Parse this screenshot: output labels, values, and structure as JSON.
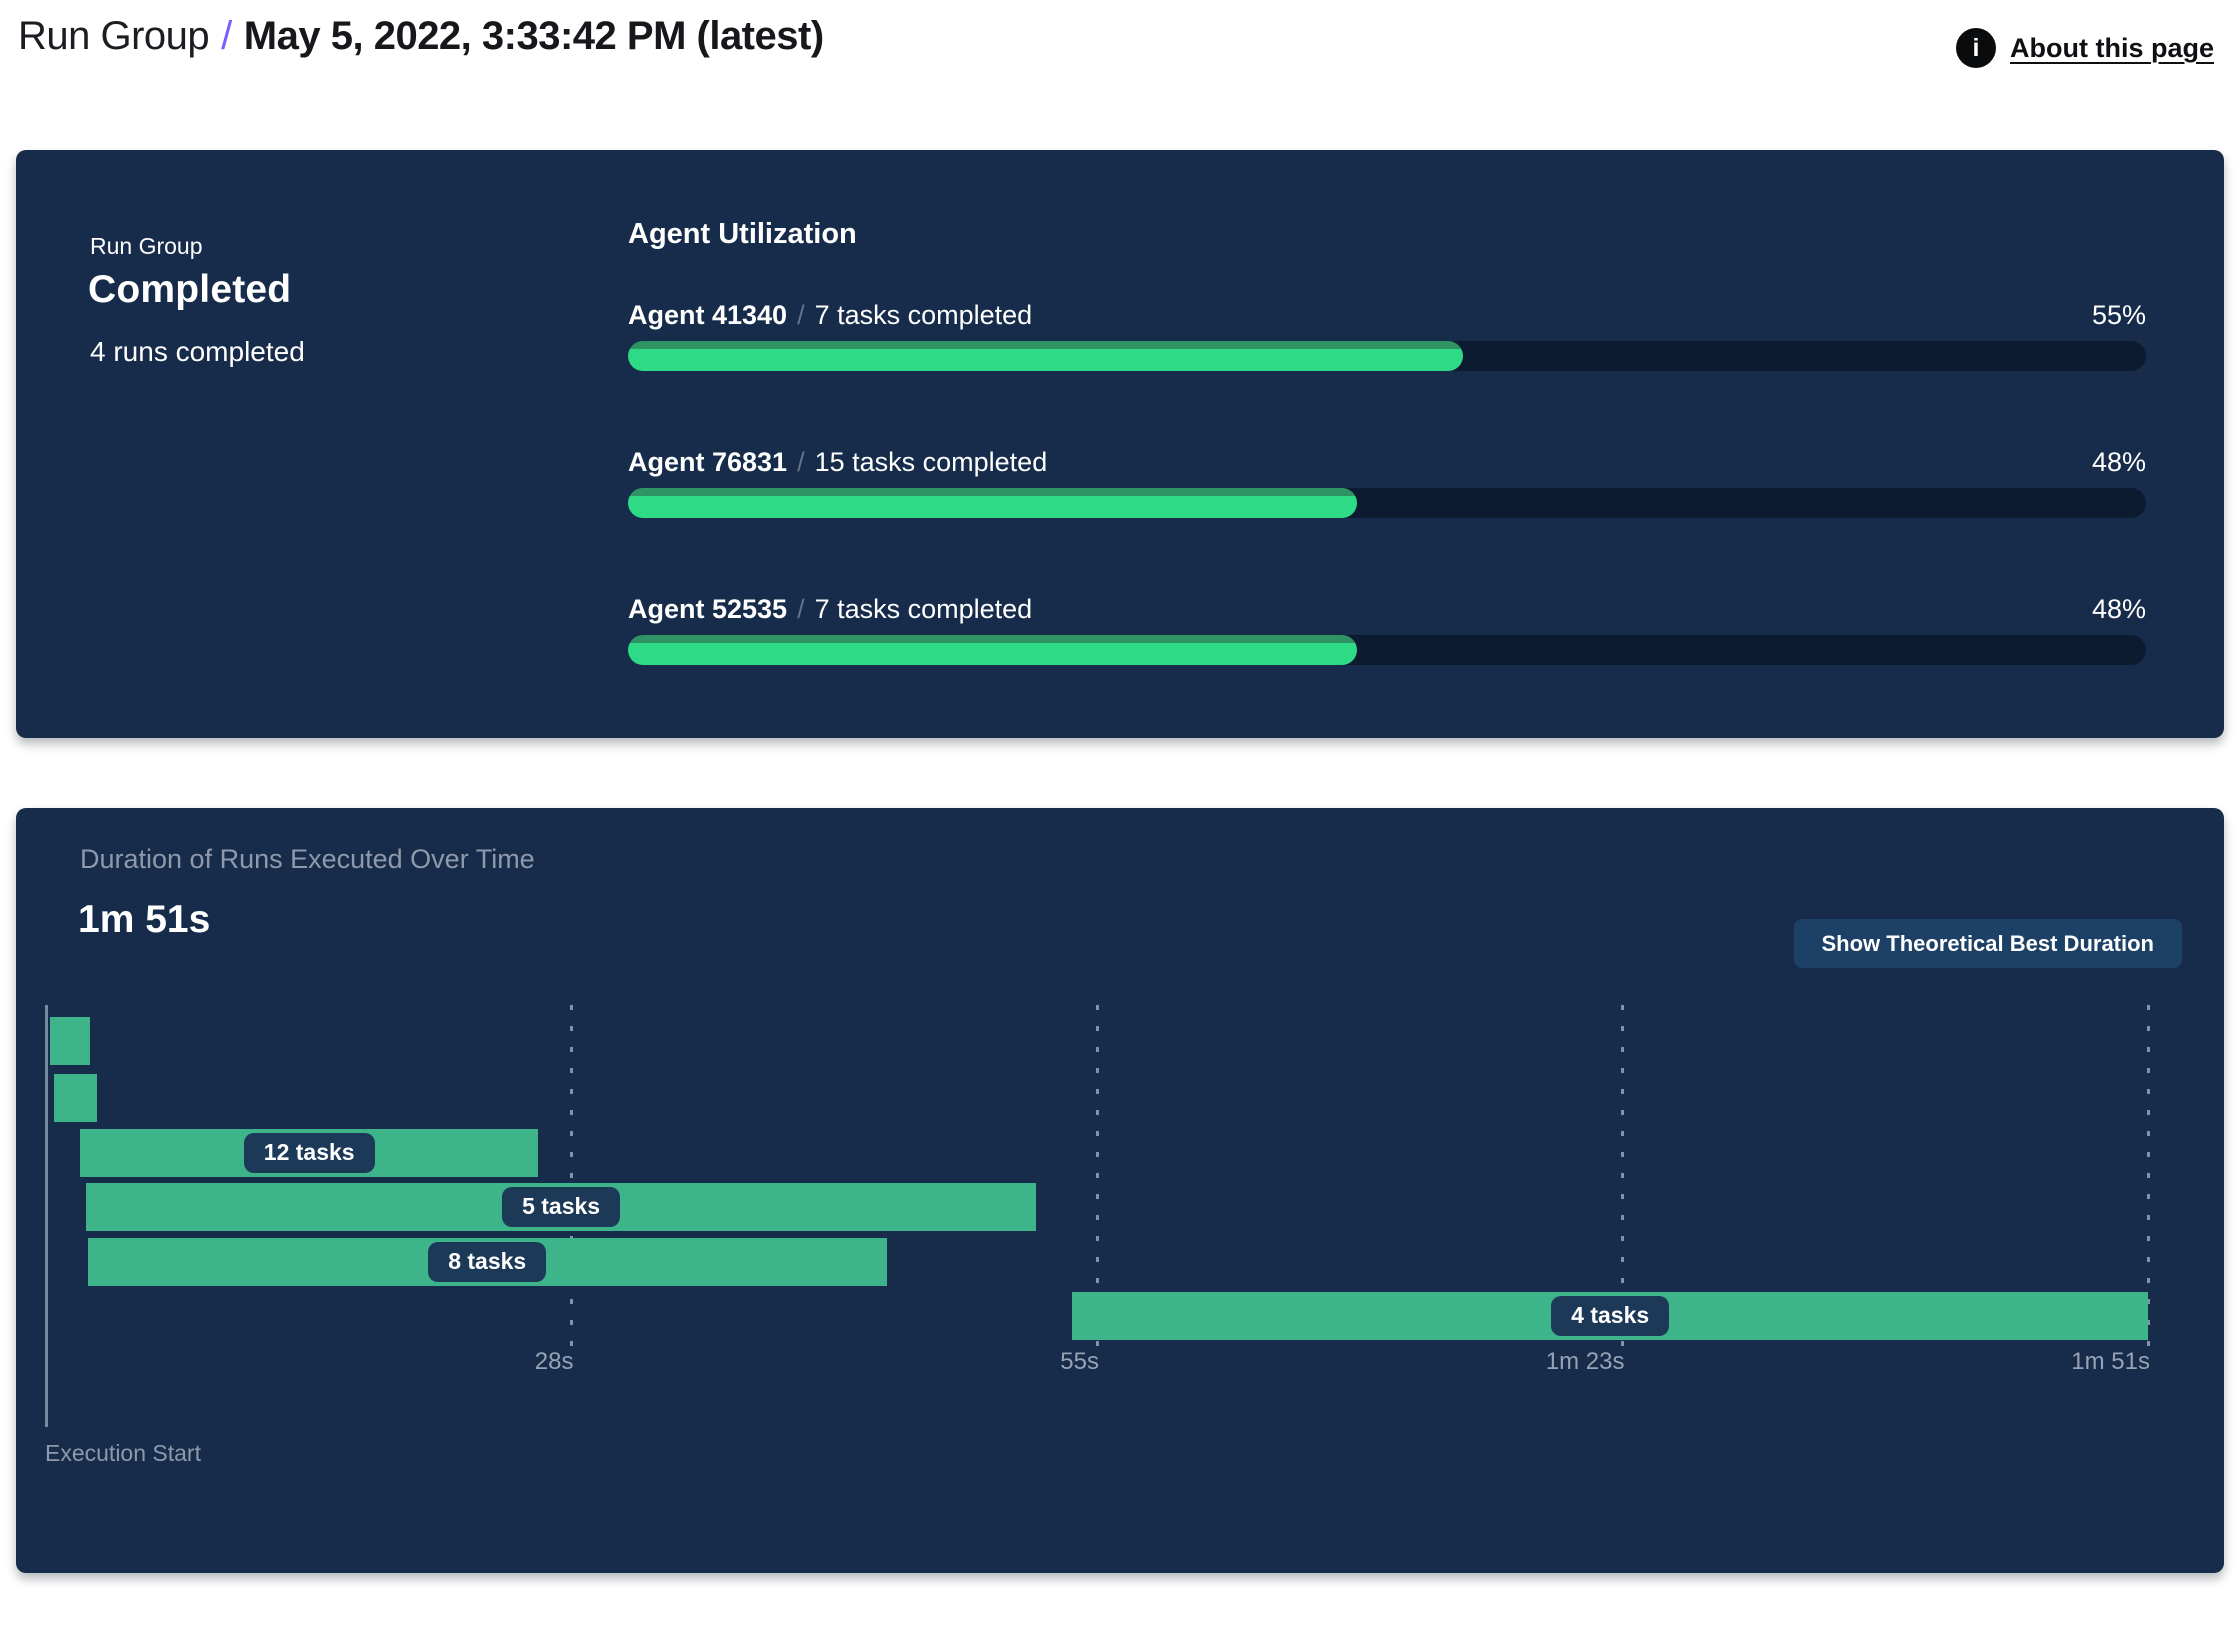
{
  "header": {
    "title": "Run Group",
    "separator": "/",
    "timestamp": "May 5, 2022, 3:33:42 PM (latest)",
    "about_link": "About this page",
    "info_icon": "i"
  },
  "run_group_card": {
    "eyebrow": "Run Group",
    "status": "Completed",
    "runs_summary": "4 runs completed",
    "utilization_title": "Agent Utilization",
    "agents": [
      {
        "name": "Agent 41340",
        "separator": "/",
        "tasks": "7 tasks completed",
        "percent": 55,
        "percent_label": "55%"
      },
      {
        "name": "Agent 76831",
        "separator": "/",
        "tasks": "15 tasks completed",
        "percent": 48,
        "percent_label": "48%"
      },
      {
        "name": "Agent 52535",
        "separator": "/",
        "tasks": "7 tasks completed",
        "percent": 48,
        "percent_label": "48%"
      }
    ]
  },
  "duration_card": {
    "title": "Duration of Runs Executed Over Time",
    "total_duration": "1m 51s",
    "button_label": "Show Theoretical Best Duration",
    "x_axis_label": "Execution Start"
  },
  "chart_data": [
    {
      "type": "bar",
      "title": "Agent Utilization",
      "orientation": "horizontal",
      "categories": [
        "Agent 41340",
        "Agent 76831",
        "Agent 52535"
      ],
      "values": [
        55,
        48,
        48
      ],
      "unit": "%",
      "xlim": [
        0,
        100
      ],
      "annotations": [
        "7 tasks completed",
        "15 tasks completed",
        "7 tasks completed"
      ]
    },
    {
      "type": "gantt",
      "title": "Duration of Runs Executed Over Time",
      "total_duration_label": "1m 51s",
      "total_duration_s": 111,
      "xlim_s": [
        0,
        111
      ],
      "grid": true,
      "axis_label": "Execution Start",
      "x_ticks": [
        {
          "t_s": 27.75,
          "label": "28s"
        },
        {
          "t_s": 55.5,
          "label": "55s"
        },
        {
          "t_s": 83.25,
          "label": "1m 23s"
        },
        {
          "t_s": 111,
          "label": "1m 51s"
        }
      ],
      "runs": [
        {
          "start_s": 0.2,
          "end_s": 2.3,
          "label": ""
        },
        {
          "start_s": 0.4,
          "end_s": 2.7,
          "label": ""
        },
        {
          "start_s": 1.8,
          "end_s": 26.0,
          "label": "12 tasks"
        },
        {
          "start_s": 2.1,
          "end_s": 52.3,
          "label": "5 tasks"
        },
        {
          "start_s": 2.2,
          "end_s": 44.4,
          "label": "8 tasks"
        },
        {
          "start_s": 54.2,
          "end_s": 111.0,
          "label": "4 tasks"
        }
      ]
    }
  ],
  "colors": {
    "page_bg": "#FFFFFF",
    "panel_bg": "#162C4A",
    "progress_track": "#0C1B30",
    "progress_fill": "#2EDA86",
    "progress_fill_top": "#2E9464",
    "gantt_bar": "#3DB48A",
    "task_pill_bg": "#1C3A58",
    "button_bg": "#1D4166",
    "muted_text": "#8E9AAC",
    "accent_purple": "#7C5CFF"
  }
}
